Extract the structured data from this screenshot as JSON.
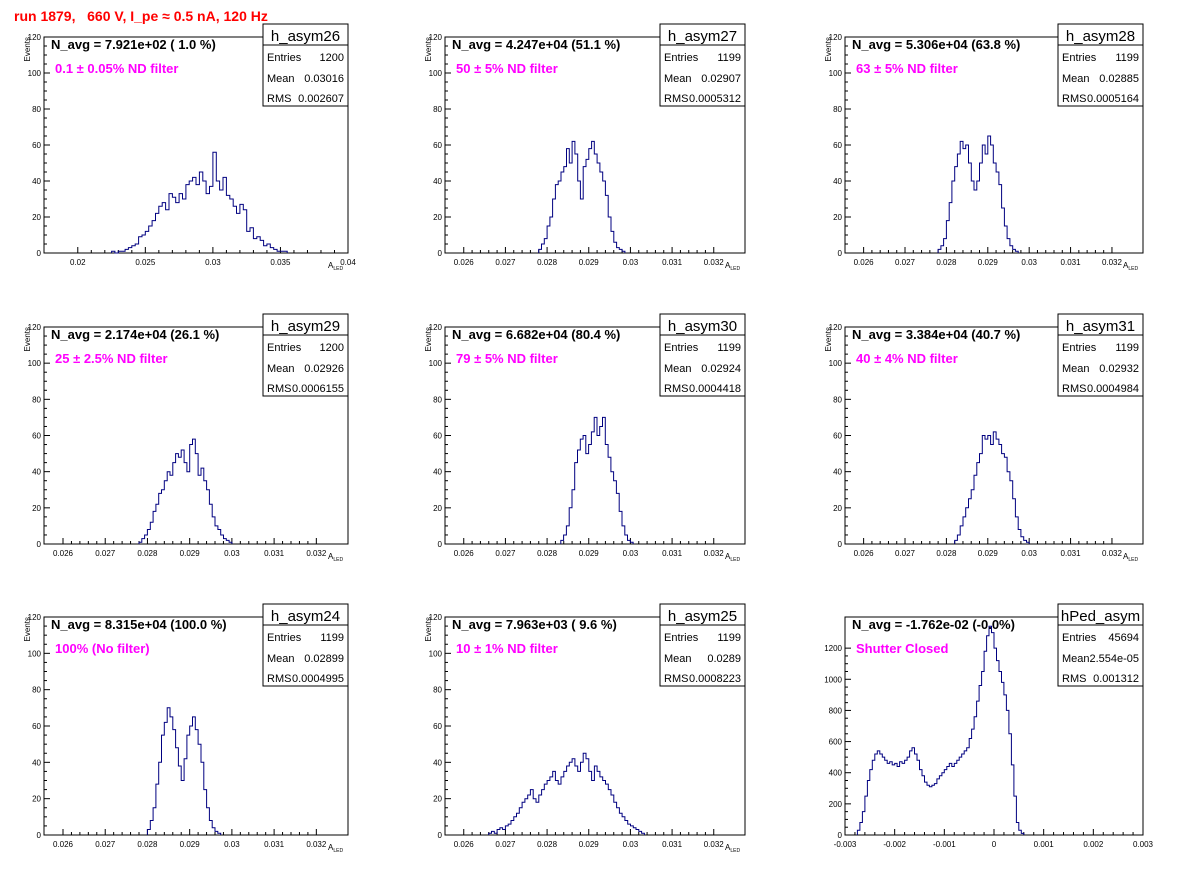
{
  "page_title": "run 1879,   660 V, I_pe ≈ 0.5 nA, 120 Hz",
  "colors": {
    "title": "#ff0000",
    "histogram": "#000080",
    "note": "#ff00ff",
    "axis": "#000000"
  },
  "stats_labels": {
    "entries": "Entries",
    "mean": "Mean",
    "rms": "RMS"
  },
  "chart_data": [
    {
      "type": "histogram",
      "name": "h_asym26",
      "title": "N_avg = 7.921e+02 ( 1.0 %)",
      "note": "0.1 ± 0.05% ND filter",
      "ylabel": "Events",
      "xlabel": "A",
      "xlabel_sub": "LED",
      "xlim": [
        0.0175,
        0.04
      ],
      "ylim": [
        0,
        120
      ],
      "xticks": [
        0.02,
        0.025,
        0.03,
        0.035,
        0.04
      ],
      "xtick_labels": [
        "0.02",
        "0.025",
        "0.03",
        "0.035",
        "0.04"
      ],
      "yticks": [
        0,
        20,
        40,
        60,
        80,
        100,
        120
      ],
      "stats": {
        "entries": "1200",
        "mean": "0.03016",
        "rms": "0.002607"
      },
      "bin_start": 0.0225,
      "bin_width": 0.00025,
      "values": [
        1,
        0,
        1,
        1,
        2,
        3,
        4,
        5,
        9,
        10,
        12,
        15,
        18,
        22,
        26,
        28,
        24,
        33,
        31,
        28,
        33,
        30,
        38,
        40,
        42,
        38,
        45,
        40,
        33,
        37,
        56,
        40,
        35,
        42,
        32,
        30,
        26,
        22,
        27,
        24,
        12,
        14,
        8,
        9,
        7,
        4,
        5,
        3,
        2,
        1,
        1,
        1
      ]
    },
    {
      "type": "histogram",
      "name": "h_asym27",
      "title": "N_avg = 4.247e+04 (51.1 %)",
      "note": "50 ± 5% ND filter",
      "ylabel": "Events",
      "xlabel": "A",
      "xlabel_sub": "LED",
      "xlim": [
        0.02555,
        0.03275
      ],
      "ylim": [
        0,
        120
      ],
      "xticks": [
        0.026,
        0.027,
        0.028,
        0.029,
        0.03,
        0.031,
        0.032
      ],
      "xtick_labels": [
        "0.026",
        "0.027",
        "0.028",
        "0.029",
        "0.03",
        "0.031",
        "0.032"
      ],
      "yticks": [
        0,
        20,
        40,
        60,
        80,
        100,
        120
      ],
      "stats": {
        "entries": "1199",
        "mean": "0.02907",
        "rms": "0.0005312"
      },
      "bin_start": 0.0278,
      "bin_width": 6.67e-05,
      "values": [
        2,
        5,
        8,
        15,
        20,
        30,
        38,
        40,
        45,
        48,
        58,
        50,
        62,
        55,
        40,
        30,
        48,
        52,
        58,
        62,
        55,
        50,
        45,
        40,
        32,
        20,
        12,
        6,
        3,
        2,
        1
      ]
    },
    {
      "type": "histogram",
      "name": "h_asym28",
      "title": "N_avg = 5.306e+04 (63.8 %)",
      "note": "63 ± 5% ND filter",
      "ylabel": "Events",
      "xlabel": "A",
      "xlabel_sub": "LED",
      "xlim": [
        0.02555,
        0.03275
      ],
      "ylim": [
        0,
        120
      ],
      "xticks": [
        0.026,
        0.027,
        0.028,
        0.029,
        0.03,
        0.031,
        0.032
      ],
      "xtick_labels": [
        "0.026",
        "0.027",
        "0.028",
        "0.029",
        "0.03",
        "0.031",
        "0.032"
      ],
      "yticks": [
        0,
        20,
        40,
        60,
        80,
        100,
        120
      ],
      "stats": {
        "entries": "1199",
        "mean": "0.02885",
        "rms": "0.0005164"
      },
      "bin_start": 0.0278,
      "bin_width": 6.67e-05,
      "values": [
        2,
        4,
        8,
        18,
        28,
        40,
        48,
        55,
        62,
        58,
        60,
        50,
        40,
        35,
        40,
        50,
        60,
        55,
        65,
        60,
        50,
        45,
        38,
        25,
        15,
        8,
        4,
        2,
        1
      ]
    },
    {
      "type": "histogram",
      "name": "h_asym29",
      "title": "N_avg = 2.174e+04 (26.1 %)",
      "note": "25 ± 2.5% ND filter",
      "ylabel": "Events",
      "xlabel": "A",
      "xlabel_sub": "LED",
      "xlim": [
        0.02555,
        0.03275
      ],
      "ylim": [
        0,
        120
      ],
      "xticks": [
        0.026,
        0.027,
        0.028,
        0.029,
        0.03,
        0.031,
        0.032
      ],
      "xtick_labels": [
        "0.026",
        "0.027",
        "0.028",
        "0.029",
        "0.03",
        "0.031",
        "0.032"
      ],
      "yticks": [
        0,
        20,
        40,
        60,
        80,
        100,
        120
      ],
      "stats": {
        "entries": "1200",
        "mean": "0.02926",
        "rms": "0.0006155"
      },
      "bin_start": 0.0278,
      "bin_width": 6.67e-05,
      "values": [
        1,
        3,
        5,
        8,
        12,
        18,
        22,
        28,
        30,
        35,
        40,
        38,
        45,
        50,
        48,
        52,
        45,
        40,
        55,
        58,
        50,
        38,
        42,
        35,
        30,
        22,
        15,
        10,
        8,
        5,
        3,
        2,
        1
      ]
    },
    {
      "type": "histogram",
      "name": "h_asym30",
      "title": "N_avg = 6.682e+04 (80.4 %)",
      "note": "79 ± 5% ND filter",
      "ylabel": "Events",
      "xlabel": "A",
      "xlabel_sub": "LED",
      "xlim": [
        0.02555,
        0.03275
      ],
      "ylim": [
        0,
        120
      ],
      "xticks": [
        0.026,
        0.027,
        0.028,
        0.029,
        0.03,
        0.031,
        0.032
      ],
      "xtick_labels": [
        "0.026",
        "0.027",
        "0.028",
        "0.029",
        "0.03",
        "0.031",
        "0.032"
      ],
      "yticks": [
        0,
        20,
        40,
        60,
        80,
        100,
        120
      ],
      "stats": {
        "entries": "1199",
        "mean": "0.02924",
        "rms": "0.0004418"
      },
      "bin_start": 0.02833,
      "bin_width": 6.67e-05,
      "values": [
        2,
        5,
        10,
        20,
        30,
        45,
        52,
        58,
        60,
        50,
        55,
        62,
        70,
        60,
        65,
        70,
        55,
        48,
        40,
        35,
        28,
        18,
        10,
        5,
        2,
        1
      ]
    },
    {
      "type": "histogram",
      "name": "h_asym31",
      "title": "N_avg = 3.384e+04 (40.7 %)",
      "note": "40 ± 4% ND filter",
      "ylabel": "Events",
      "xlabel": "A",
      "xlabel_sub": "LED",
      "xlim": [
        0.02555,
        0.03275
      ],
      "ylim": [
        0,
        120
      ],
      "xticks": [
        0.026,
        0.027,
        0.028,
        0.029,
        0.03,
        0.031,
        0.032
      ],
      "xtick_labels": [
        "0.026",
        "0.027",
        "0.028",
        "0.029",
        "0.03",
        "0.031",
        "0.032"
      ],
      "yticks": [
        0,
        20,
        40,
        60,
        80,
        100,
        120
      ],
      "stats": {
        "entries": "1199",
        "mean": "0.02932",
        "rms": "0.0004984"
      },
      "bin_start": 0.0282,
      "bin_width": 6.67e-05,
      "values": [
        2,
        5,
        10,
        15,
        20,
        25,
        30,
        38,
        45,
        50,
        60,
        58,
        60,
        55,
        62,
        58,
        55,
        50,
        48,
        40,
        35,
        25,
        15,
        8,
        4,
        2,
        1
      ]
    },
    {
      "type": "histogram",
      "name": "h_asym24",
      "title": "N_avg = 8.315e+04 (100.0 %)",
      "note": "100% (No filter)",
      "ylabel": "Events",
      "xlabel": "A",
      "xlabel_sub": "LED",
      "xlim": [
        0.02555,
        0.03275
      ],
      "ylim": [
        0,
        120
      ],
      "xticks": [
        0.026,
        0.027,
        0.028,
        0.029,
        0.03,
        0.031,
        0.032
      ],
      "xtick_labels": [
        "0.026",
        "0.027",
        "0.028",
        "0.029",
        "0.03",
        "0.031",
        "0.032"
      ],
      "yticks": [
        0,
        20,
        40,
        60,
        80,
        100,
        120
      ],
      "stats": {
        "entries": "1199",
        "mean": "0.02899",
        "rms": "0.0004995"
      },
      "bin_start": 0.028,
      "bin_width": 6.67e-05,
      "values": [
        3,
        8,
        15,
        28,
        40,
        55,
        62,
        70,
        65,
        58,
        48,
        38,
        30,
        42,
        55,
        60,
        65,
        58,
        50,
        40,
        25,
        15,
        8,
        4,
        2,
        1
      ]
    },
    {
      "type": "histogram",
      "name": "h_asym25",
      "title": "N_avg = 7.963e+03 ( 9.6 %)",
      "note": "10 ± 1% ND filter",
      "ylabel": "Events",
      "xlabel": "A",
      "xlabel_sub": "LED",
      "xlim": [
        0.02555,
        0.03275
      ],
      "ylim": [
        0,
        120
      ],
      "xticks": [
        0.026,
        0.027,
        0.028,
        0.029,
        0.03,
        0.031,
        0.032
      ],
      "xtick_labels": [
        "0.026",
        "0.027",
        "0.028",
        "0.029",
        "0.03",
        "0.031",
        "0.032"
      ],
      "yticks": [
        0,
        20,
        40,
        60,
        80,
        100,
        120
      ],
      "stats": {
        "entries": "1199",
        "mean": "0.0289",
        "rms": "0.0008223"
      },
      "bin_start": 0.0266,
      "bin_width": 6.67e-05,
      "values": [
        1,
        2,
        1,
        3,
        4,
        3,
        5,
        6,
        8,
        10,
        12,
        15,
        18,
        20,
        22,
        25,
        20,
        18,
        22,
        25,
        28,
        30,
        32,
        35,
        30,
        28,
        32,
        35,
        38,
        40,
        42,
        38,
        35,
        40,
        45,
        42,
        35,
        30,
        38,
        35,
        32,
        30,
        28,
        25,
        22,
        18,
        15,
        12,
        10,
        8,
        6,
        5,
        4,
        3,
        2,
        1
      ]
    },
    {
      "type": "histogram",
      "name": "hPed_asym",
      "title": "N_avg = -1.762e-02 (-0.0%)",
      "note": "Shutter Closed",
      "ylabel": "",
      "xlabel": "",
      "xlabel_sub": "",
      "xlim": [
        -0.003,
        0.003
      ],
      "ylim": [
        0,
        1400
      ],
      "xticks": [
        -0.003,
        -0.002,
        -0.001,
        0,
        0.001,
        0.002,
        0.003
      ],
      "xtick_labels": [
        "-0.003",
        "-0.002",
        "-0.001",
        "0",
        "0.001",
        "0.002",
        "0.003"
      ],
      "yticks": [
        0,
        200,
        400,
        600,
        800,
        1000,
        1200
      ],
      "stats": {
        "entries": "45694",
        "mean": "2.554e-05",
        "rms": "0.001312"
      },
      "bin_start": -0.00275,
      "bin_width": 5e-05,
      "values": [
        30,
        80,
        150,
        250,
        350,
        420,
        480,
        520,
        540,
        520,
        500,
        480,
        460,
        470,
        450,
        460,
        440,
        470,
        460,
        480,
        500,
        540,
        560,
        520,
        480,
        420,
        380,
        340,
        320,
        310,
        320,
        330,
        360,
        380,
        400,
        420,
        440,
        460,
        440,
        460,
        480,
        500,
        520,
        540,
        560,
        620,
        680,
        760,
        860,
        960,
        1050,
        1180,
        1280,
        1340,
        1300,
        1200,
        1120,
        1050,
        980,
        900,
        800,
        650,
        450,
        250,
        80,
        30,
        10
      ]
    }
  ]
}
